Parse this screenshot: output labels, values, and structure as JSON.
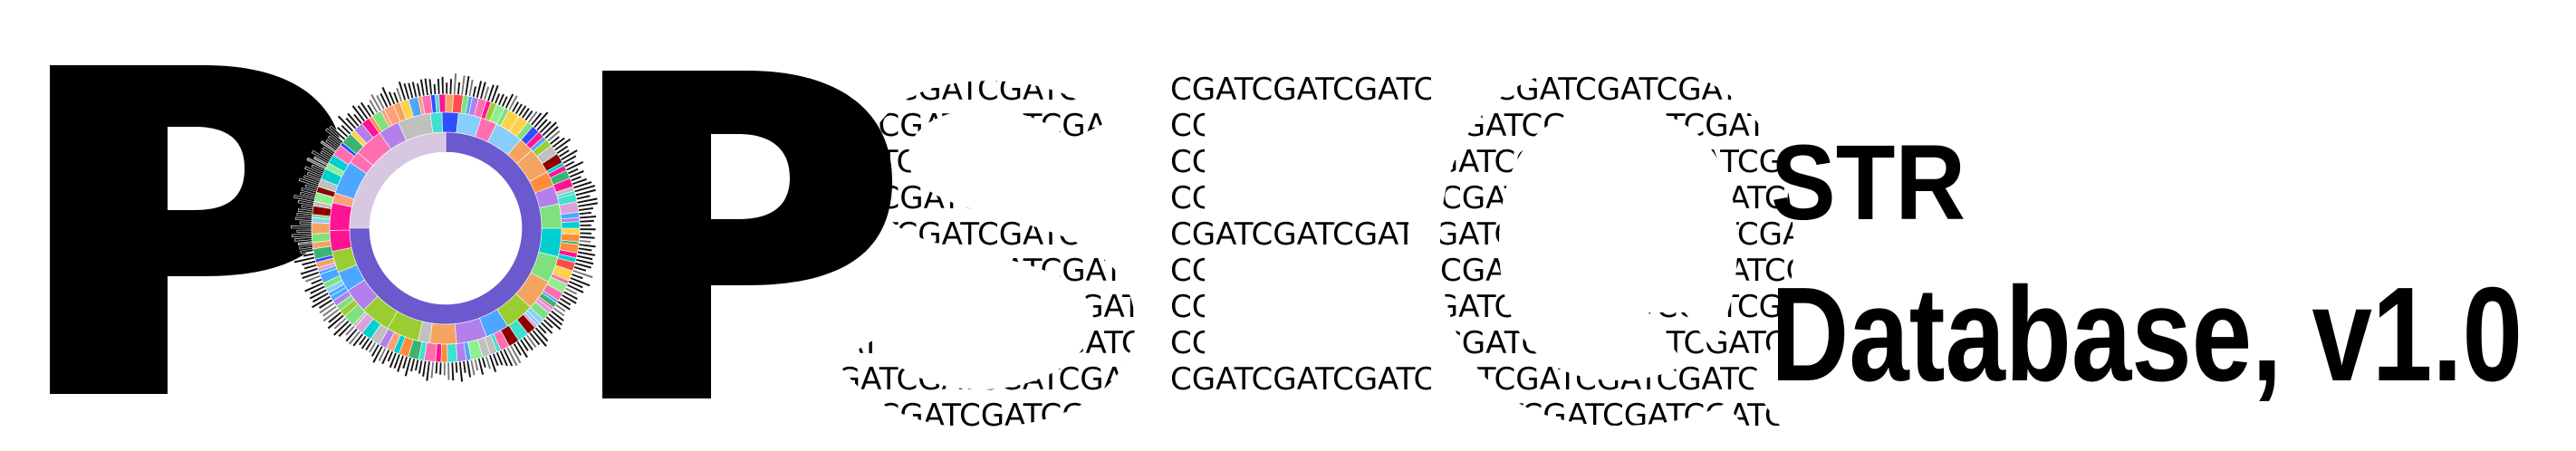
{
  "logo": {
    "letters": [
      "P",
      "O",
      "P",
      "S",
      "E",
      "Q"
    ],
    "sequence_text": "CGATCGATCGATCGATCGATCGATCGATCGATCGATCGATCGATCGATCGATCGATCGATCG",
    "subtitle_line1": "STR",
    "subtitle_line2": "Database, v1.0",
    "colors": {
      "ink": "#000000",
      "inner_ring": "#6a5acd",
      "center_wedge": "#d8c7e0",
      "background": "#ffffff"
    },
    "sunburst_palette": [
      "#ff6fb0",
      "#ffd24d",
      "#7ee07e",
      "#4da6ff",
      "#ff8c3b",
      "#b37feb",
      "#40e0d0",
      "#ff4d4d",
      "#9acd32",
      "#87cefa",
      "#f4a460",
      "#dda0dd",
      "#2f4fff",
      "#8b0000",
      "#00ced1",
      "#c0c0c0",
      "#ffa07a",
      "#90ee90",
      "#ff1493",
      "#3cb371"
    ]
  }
}
